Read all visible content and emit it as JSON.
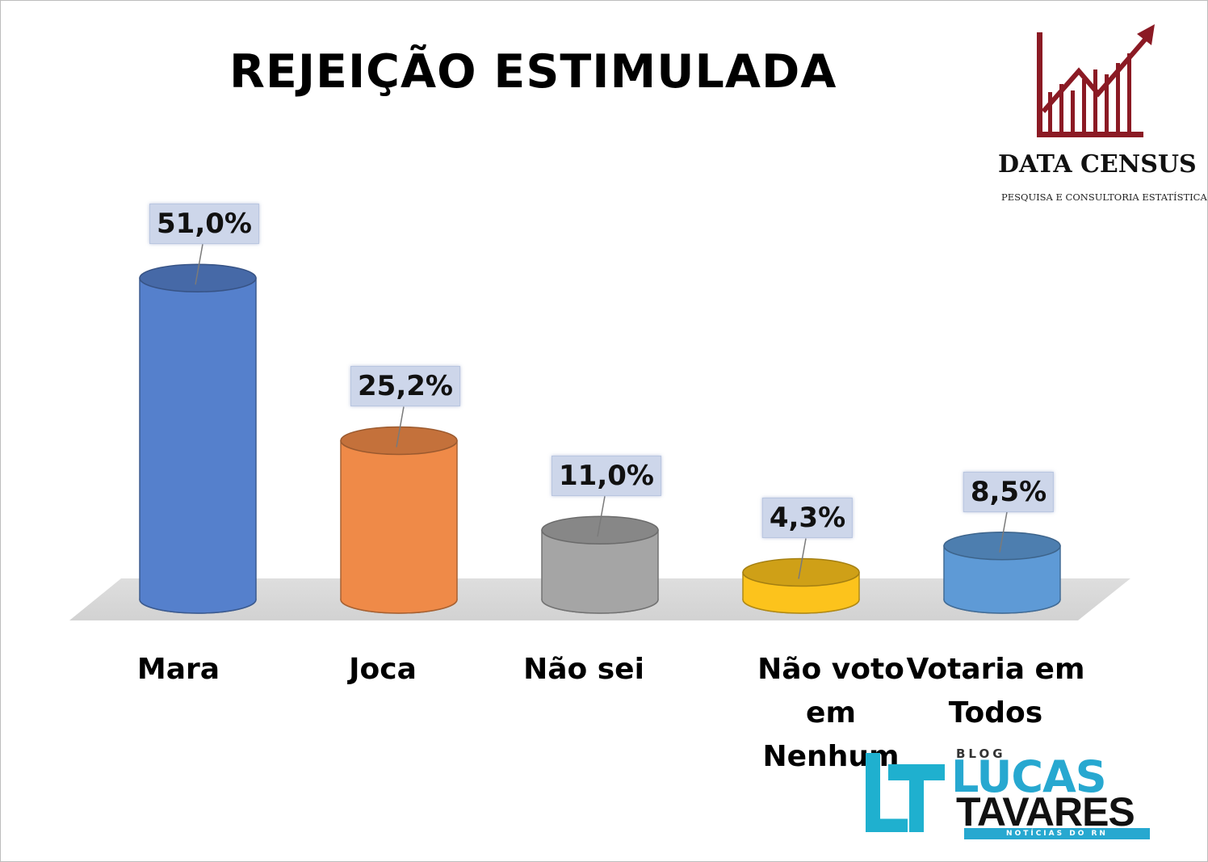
{
  "chart_data": {
    "type": "bar",
    "title": "REJEIÇÃO ESTIMULADA",
    "categories": [
      "Mara",
      "Joca",
      "Não sei",
      "Não voto em Nenhum",
      "Votaria em Todos"
    ],
    "values": [
      51.0,
      25.2,
      11.0,
      4.3,
      8.5
    ],
    "data_labels": [
      "51,0%",
      "25,2%",
      "11,0%",
      "4,3%",
      "8,5%"
    ],
    "unit": "%",
    "colors": [
      "#5580cc",
      "#ef8a48",
      "#a5a5a5",
      "#fcc31c",
      "#5e9ad6"
    ],
    "bar_style": "3d-cylinder",
    "grid": false,
    "legend": "none"
  },
  "branding": {
    "datacensus": {
      "name": "DATA CENSUS",
      "tagline": "PESQUISA E CONSULTORIA ESTATÍSTICA",
      "color": "#8b1a24"
    },
    "blog": {
      "word": "BLOG",
      "line1": "LUCAS",
      "line2": "TAVARES",
      "tagline": "NOTÍCIAS DO RN",
      "color": "#27a8d0"
    }
  }
}
